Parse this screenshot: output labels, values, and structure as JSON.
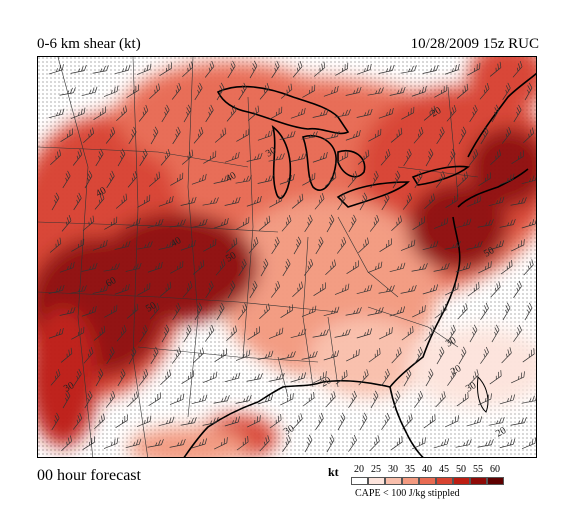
{
  "header": {
    "title": "0-6 km shear (kt)",
    "meta": "10/28/2009  15z  RUC"
  },
  "footer": {
    "forecast": "00 hour forecast",
    "legend_unit": "kt",
    "note": "CAPE < 100 J/kg stippled"
  },
  "legend": {
    "labels": [
      "20",
      "25",
      "30",
      "35",
      "40",
      "45",
      "50",
      "55",
      "60"
    ],
    "colors": [
      "#ffffff",
      "#fde4dc",
      "#f9bfac",
      "#f39a80",
      "#e86b52",
      "#d84330",
      "#bd1d12",
      "#8f0a07",
      "#5e0000"
    ]
  },
  "map": {
    "contour_labels": [
      "20",
      "30",
      "30",
      "40",
      "40",
      "40",
      "50",
      "50",
      "60",
      "20",
      "30",
      "20",
      "30",
      "30",
      "20",
      "50"
    ]
  }
}
